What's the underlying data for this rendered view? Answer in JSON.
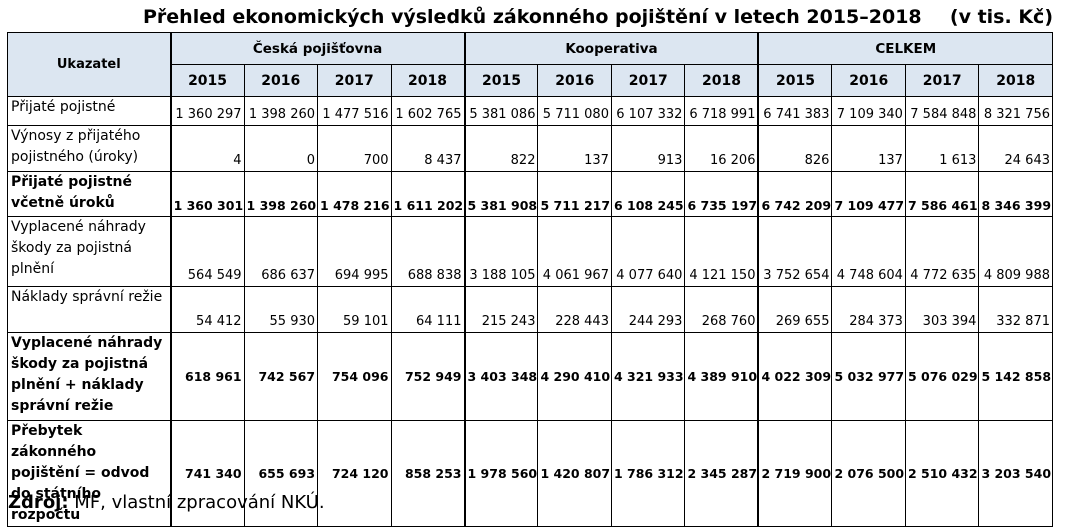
{
  "title": "Přehled ekonomických výsledků zákonného pojištění v letech 2015–2018",
  "unit": "(v tis. Kč)",
  "table": {
    "corner_header": "Ukazatel",
    "groups": [
      "Česká pojišťovna",
      "Kooperativa",
      "CELKEM"
    ],
    "years": [
      "2015",
      "2016",
      "2017",
      "2018"
    ],
    "rows": [
      {
        "label": "Přijaté pojistné",
        "values": [
          "1 360 297",
          "1 398 260",
          "1 477 516",
          "1 602 765",
          "5 381 086",
          "5 711 080",
          "6 107 332",
          "6 718 991",
          "6 741 383",
          "7 109 340",
          "7 584 848",
          "8 321 756"
        ]
      },
      {
        "label": "Výnosy z přijatého pojistného (úroky)",
        "values": [
          "4",
          "0",
          "700",
          "8 437",
          "822",
          "137",
          "913",
          "16 206",
          "826",
          "137",
          "1 613",
          "24 643"
        ]
      },
      {
        "label": "Přijaté pojistné včetně úroků",
        "values": [
          "1 360 301",
          "1 398 260",
          "1 478 216",
          "1 611 202",
          "5 381 908",
          "5 711 217",
          "6 108 245",
          "6 735 197",
          "6 742 209",
          "7 109 477",
          "7 586 461",
          "8 346 399"
        ]
      },
      {
        "label": "Vyplacené náhrady škody za pojistná plnění",
        "values": [
          "564 549",
          "686 637",
          "694 995",
          "688 838",
          "3 188 105",
          "4 061 967",
          "4 077 640",
          "4 121 150",
          "3 752 654",
          "4 748 604",
          "4 772 635",
          "4 809 988"
        ]
      },
      {
        "label": "Náklady správní režie",
        "values": [
          "54 412",
          "55 930",
          "59 101",
          "64 111",
          "215 243",
          "228 443",
          "244 293",
          "268 760",
          "269 655",
          "284 373",
          "303 394",
          "332 871"
        ]
      },
      {
        "label": "Vyplacené náhrady škody za pojistná plnění + náklady správní režie",
        "values": [
          "618 961",
          "742 567",
          "754 096",
          "752 949",
          "3 403 348",
          "4 290 410",
          "4 321 933",
          "4 389 910",
          "4 022 309",
          "5 032 977",
          "5 076 029",
          "5 142 858"
        ]
      },
      {
        "label": "Přebytek zákonného pojištění = odvod do státního rozpočtu",
        "values": [
          "741 340",
          "655 693",
          "724 120",
          "858 253",
          "1 978 560",
          "1 420 807",
          "1 786 312",
          "2 345 287",
          "2 719 900",
          "2 076 500",
          "2 510 432",
          "3 203 540"
        ]
      }
    ]
  },
  "source": {
    "label": "Zdroj:",
    "text": " MF, vlastní zpracování NKÚ."
  }
}
